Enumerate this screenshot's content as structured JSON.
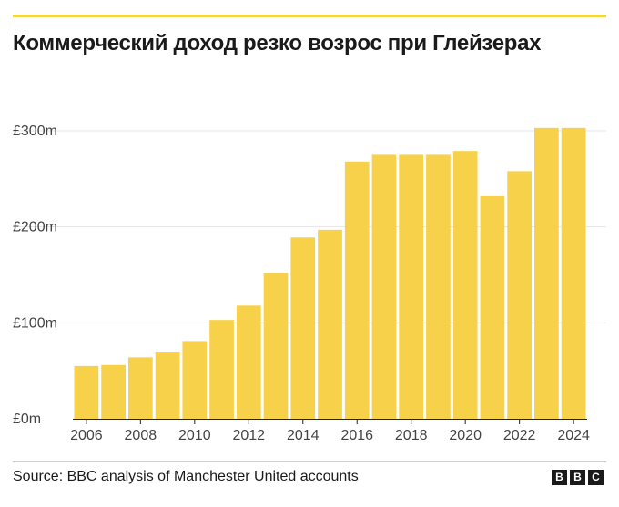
{
  "header": {
    "title": "Коммерческий доход резко возрос при Глейзерах"
  },
  "footer": {
    "source": "Source: BBC analysis of Manchester United accounts",
    "logo_letters": [
      "B",
      "B",
      "C"
    ]
  },
  "colors": {
    "accent": "#f2d449",
    "bar": "#f8d14a",
    "grid": "#e6e6e6",
    "axis": "#222222"
  },
  "chart_data": {
    "type": "bar",
    "title": "Коммерческий доход резко возрос при Глейзерах",
    "xlabel": "",
    "ylabel": "",
    "categories": [
      "2006",
      "2007",
      "2008",
      "2009",
      "2010",
      "2011",
      "2012",
      "2013",
      "2014",
      "2015",
      "2016",
      "2017",
      "2018",
      "2019",
      "2020",
      "2021",
      "2022",
      "2023",
      "2024"
    ],
    "values": [
      55,
      56,
      64,
      70,
      81,
      103,
      118,
      152,
      189,
      197,
      268,
      275,
      275,
      275,
      279,
      232,
      258,
      303,
      303
    ],
    "ylim": [
      0,
      300
    ],
    "yticks": [
      0,
      100,
      200,
      300
    ],
    "ytick_labels": [
      "£0m",
      "£100m",
      "£200m",
      "£300m"
    ],
    "xtick_labels": [
      "2006",
      "2008",
      "2010",
      "2012",
      "2014",
      "2016",
      "2018",
      "2020",
      "2022",
      "2024"
    ],
    "grid": true,
    "legend": "none"
  }
}
